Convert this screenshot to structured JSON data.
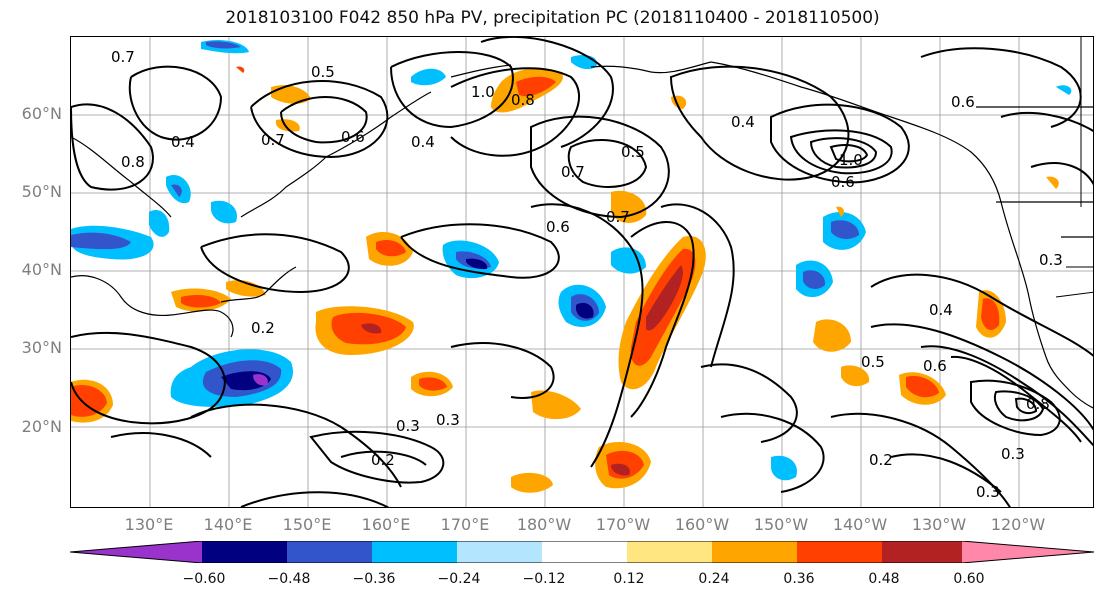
{
  "title": "2018103100 F042 850 hPa PV, precipitation PC (2018110400 - 2018110500)",
  "lat_labels": [
    "60°N",
    "50°N",
    "40°N",
    "30°N",
    "20°N"
  ],
  "lon_labels": [
    "130°E",
    "140°E",
    "150°E",
    "160°E",
    "170°E",
    "180°W",
    "170°W",
    "160°W",
    "150°W",
    "140°W",
    "130°W",
    "120°W"
  ],
  "contour_labels": [
    "0.7",
    "0.5",
    "1.0",
    "0.8",
    "0.7",
    "0.6",
    "0.4",
    "0.8",
    "0.7",
    "1.0",
    "0.6",
    "0.5",
    "0.4",
    "0.6",
    "0.7",
    "0.6",
    "0.4",
    "0.3",
    "0.2",
    "0.3",
    "0.3",
    "0.2",
    "0.4",
    "0.6",
    "0.5",
    "0.8",
    "0.2",
    "0.3",
    "0.3"
  ],
  "colorbar": {
    "tick_labels": [
      "−0.60",
      "−0.48",
      "−0.36",
      "−0.24",
      "−0.12",
      "0.12",
      "0.24",
      "0.36",
      "0.48",
      "0.60"
    ],
    "colors": [
      "#9933cc",
      "#000080",
      "#3355cc",
      "#00bfff",
      "#b3e5ff",
      "#ffffff",
      "#ffe680",
      "#ffa500",
      "#ff4000",
      "#b22222",
      "#ff88aa"
    ]
  }
}
